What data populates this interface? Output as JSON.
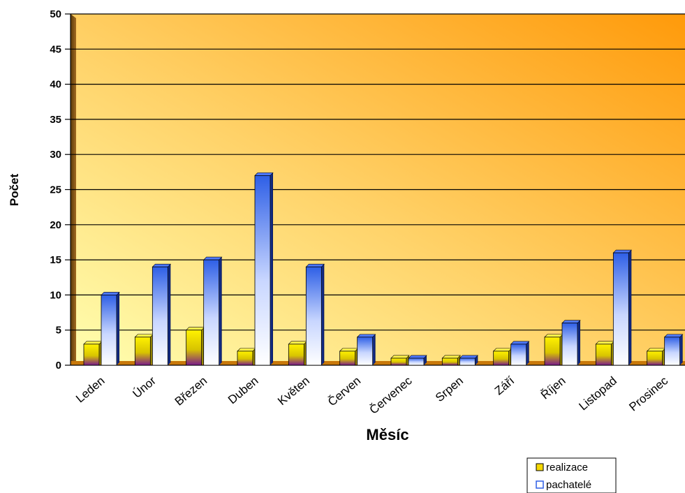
{
  "chart_data": {
    "type": "bar",
    "title": "",
    "xlabel": "Měsíc",
    "ylabel": "Počet",
    "ylim": [
      0,
      50
    ],
    "yticks": [
      0,
      5,
      10,
      15,
      20,
      25,
      30,
      35,
      40,
      45,
      50
    ],
    "grid": true,
    "legend_position": "bottom-right",
    "categories": [
      "Leden",
      "Únor",
      "Březen",
      "Duben",
      "Květen",
      "Červen",
      "Červenec",
      "Srpen",
      "Září",
      "Říjen",
      "Listopad",
      "Prosinec"
    ],
    "series": [
      {
        "name": "realizace",
        "color": "#f5d800",
        "values": [
          3,
          4,
          5,
          2,
          3,
          2,
          1,
          1,
          2,
          4,
          3,
          2
        ]
      },
      {
        "name": "pachatelé",
        "color": "#3a66e0",
        "values": [
          10,
          14,
          15,
          27,
          14,
          4,
          1,
          1,
          3,
          6,
          16,
          4
        ]
      }
    ],
    "colors": {
      "plot_top": "#ff9e12",
      "plot_bottom": "#ffffa6",
      "floor": "#c8780a",
      "wall": "#8a5a1a",
      "gridline": "#000000"
    }
  }
}
